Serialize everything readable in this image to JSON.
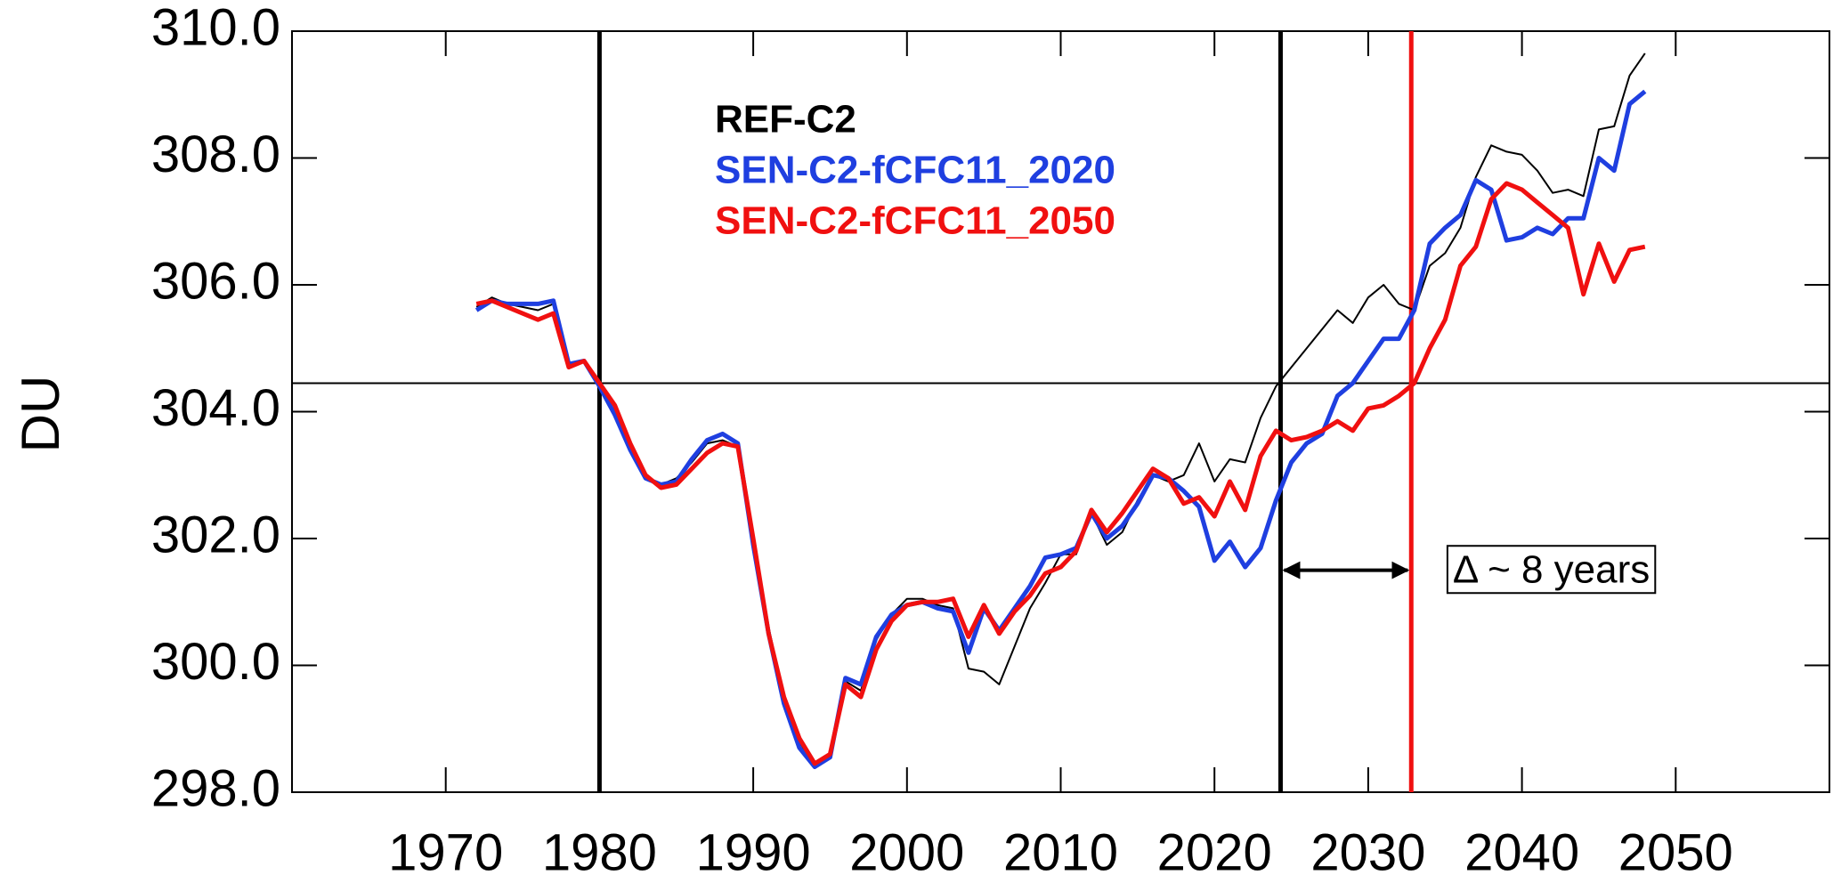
{
  "chart_data": {
    "type": "line",
    "y_label": "DU",
    "x": [
      1972,
      1973,
      1974,
      1975,
      1976,
      1977,
      1978,
      1979,
      1980,
      1981,
      1982,
      1983,
      1984,
      1985,
      1986,
      1987,
      1988,
      1989,
      1990,
      1991,
      1992,
      1993,
      1994,
      1995,
      1996,
      1997,
      1998,
      1999,
      2000,
      2001,
      2002,
      2003,
      2004,
      2005,
      2006,
      2007,
      2008,
      2009,
      2010,
      2011,
      2012,
      2013,
      2014,
      2015,
      2016,
      2017,
      2018,
      2019,
      2020,
      2021,
      2022,
      2023,
      2024,
      2025,
      2026,
      2027,
      2028,
      2029,
      2030,
      2031,
      2032,
      2033,
      2034,
      2035,
      2036,
      2037,
      2038,
      2039,
      2040,
      2041,
      2042,
      2043,
      2044,
      2045,
      2046,
      2047,
      2048
    ],
    "series": [
      {
        "name": "REF-C2",
        "color": "#000000",
        "width": 2,
        "values": [
          305.65,
          305.8,
          305.7,
          305.65,
          305.6,
          305.7,
          304.75,
          304.8,
          304.4,
          304.0,
          303.4,
          302.95,
          302.85,
          302.95,
          303.2,
          303.5,
          303.55,
          303.45,
          302.0,
          300.6,
          299.5,
          298.8,
          298.4,
          298.55,
          299.75,
          299.6,
          300.4,
          300.8,
          301.05,
          301.05,
          300.95,
          300.9,
          299.95,
          299.9,
          299.7,
          300.3,
          300.9,
          301.3,
          301.75,
          301.75,
          302.4,
          301.9,
          302.1,
          302.6,
          303.0,
          302.9,
          303.0,
          303.5,
          302.9,
          303.25,
          303.2,
          303.9,
          304.4,
          304.7,
          305.0,
          305.3,
          305.6,
          305.4,
          305.8,
          306.0,
          305.7,
          305.6,
          306.3,
          306.5,
          306.9,
          307.7,
          308.2,
          308.1,
          308.05,
          307.8,
          307.45,
          307.5,
          307.4,
          308.45,
          308.5,
          309.3,
          309.65
        ]
      },
      {
        "name": "SEN-C2-fCFC11_2020",
        "color": "#1f3fe0",
        "width": 5,
        "values": [
          305.6,
          305.75,
          305.7,
          305.7,
          305.7,
          305.75,
          304.75,
          304.8,
          304.4,
          303.95,
          303.4,
          302.95,
          302.85,
          302.9,
          303.25,
          303.55,
          303.65,
          303.5,
          301.9,
          300.5,
          299.4,
          298.7,
          298.4,
          298.55,
          299.8,
          299.7,
          300.45,
          300.8,
          300.95,
          301.0,
          300.9,
          300.85,
          300.2,
          300.9,
          300.55,
          300.9,
          301.25,
          301.7,
          301.75,
          301.85,
          302.4,
          302.0,
          302.2,
          302.55,
          303.0,
          302.95,
          302.75,
          302.5,
          301.65,
          301.95,
          301.55,
          301.85,
          302.6,
          303.2,
          303.5,
          303.65,
          304.25,
          304.45,
          304.8,
          305.15,
          305.15,
          305.6,
          306.65,
          306.9,
          307.1,
          307.65,
          307.5,
          306.7,
          306.75,
          306.9,
          306.8,
          307.05,
          307.05,
          308.0,
          307.8,
          308.85,
          309.05
        ]
      },
      {
        "name": "SEN-C2-fCFC11_2050",
        "color": "#f01010",
        "width": 5,
        "values": [
          305.7,
          305.75,
          305.65,
          305.55,
          305.45,
          305.55,
          304.7,
          304.8,
          304.45,
          304.1,
          303.5,
          303.0,
          302.8,
          302.85,
          303.1,
          303.35,
          303.5,
          303.45,
          302.0,
          300.5,
          299.5,
          298.85,
          298.45,
          298.6,
          299.7,
          299.5,
          300.25,
          300.7,
          300.95,
          301.0,
          301.0,
          301.05,
          300.45,
          300.95,
          300.5,
          300.85,
          301.1,
          301.45,
          301.55,
          301.8,
          302.45,
          302.1,
          302.4,
          302.75,
          303.1,
          302.95,
          302.55,
          302.65,
          302.35,
          302.9,
          302.45,
          303.3,
          303.7,
          303.55,
          303.6,
          303.7,
          303.85,
          303.7,
          304.05,
          304.1,
          304.25,
          304.45,
          305.0,
          305.45,
          306.3,
          306.6,
          307.35,
          307.6,
          307.5,
          307.3,
          307.1,
          306.9,
          305.85,
          306.65,
          306.05,
          306.55,
          306.6
        ]
      }
    ],
    "xlim": [
      1960,
      2060
    ],
    "xticks": [
      1970,
      1980,
      1990,
      2000,
      2010,
      2020,
      2030,
      2040,
      2050
    ],
    "ylim": [
      298,
      310
    ],
    "yticks": [
      {
        "value": 298,
        "label": "298.0"
      },
      {
        "value": 300,
        "label": "300.0"
      },
      {
        "value": 302,
        "label": "302.0"
      },
      {
        "value": 304,
        "label": "304.0"
      },
      {
        "value": 306,
        "label": "306.0"
      },
      {
        "value": 308,
        "label": "308.0"
      },
      {
        "value": 310,
        "label": "310.0"
      }
    ],
    "hlines": [
      {
        "value": 304.45,
        "color": "#000000"
      }
    ],
    "vlines": [
      {
        "value": 1980,
        "color": "#000000"
      },
      {
        "value": 2024.3,
        "color": "#000000"
      },
      {
        "value": 2032.8,
        "color": "#f01010"
      }
    ],
    "annotation": {
      "text": "Δ ~ 8 years",
      "x": 2035.5,
      "y": 301.5,
      "arrow": [
        2024.3,
        2032.8
      ]
    }
  }
}
